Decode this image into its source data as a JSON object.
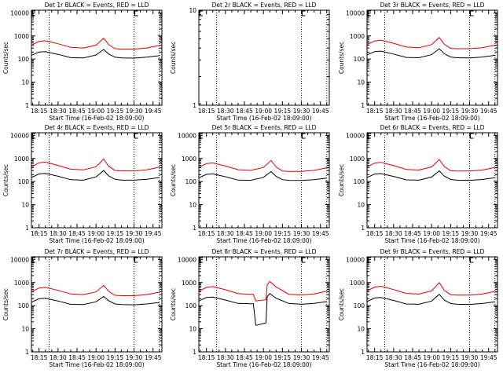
{
  "colors": {
    "events": "#000000",
    "lld": "#e00000",
    "axes": "#000000",
    "background": "#ffffff"
  },
  "shared_axes": {
    "xlabel": "Start Time (16-Feb-02 18:09:00)",
    "ylabel": "Counts/sec",
    "y_scale": "log",
    "ylim": [
      1,
      13000
    ],
    "xlim_times": [
      "18:09:00",
      "19:52:00"
    ],
    "x_ticks": [
      "18:15",
      "18:30",
      "18:45",
      "19:00",
      "19:15",
      "19:30",
      "19:45"
    ],
    "y_ticks_full": [
      "10000",
      "1000",
      "100",
      "10",
      "1"
    ],
    "dotted_line_times": [
      "18:23",
      "19:30",
      "19:50"
    ]
  },
  "chart_data": [
    {
      "type": "line",
      "title": "Det 1r BLACK = Events, RED = LLD",
      "x": [
        "18:09",
        "18:15",
        "18:20",
        "18:30",
        "18:40",
        "18:50",
        "19:00",
        "19:06",
        "19:10",
        "19:15",
        "19:20",
        "19:30",
        "19:40",
        "19:50"
      ],
      "series": [
        {
          "name": "Events",
          "color": "#000000",
          "values": [
            145,
            200,
            210,
            160,
            115,
            112,
            150,
            260,
            165,
            120,
            112,
            110,
            120,
            140
          ]
        },
        {
          "name": "LLD",
          "color": "#e00000",
          "values": [
            400,
            580,
            620,
            460,
            320,
            300,
            400,
            800,
            420,
            280,
            270,
            270,
            300,
            390
          ]
        }
      ],
      "ylim": [
        1,
        13000
      ],
      "y_scale": "log"
    },
    {
      "type": "line",
      "title": "Det 2r BLACK = Events, RED = LLD",
      "x": [],
      "series": [],
      "ylim": [
        1,
        10
      ],
      "y_scale": "log",
      "y_ticks": [
        "10",
        "1"
      ]
    },
    {
      "type": "line",
      "title": "Det 3r BLACK = Events, RED = LLD",
      "x": [
        "18:09",
        "18:15",
        "18:20",
        "18:30",
        "18:40",
        "18:50",
        "19:00",
        "19:06",
        "19:10",
        "19:15",
        "19:20",
        "19:30",
        "19:40",
        "19:50"
      ],
      "series": [
        {
          "name": "Events",
          "color": "#000000",
          "values": [
            150,
            210,
            220,
            165,
            118,
            114,
            155,
            280,
            170,
            122,
            114,
            112,
            122,
            145
          ]
        },
        {
          "name": "LLD",
          "color": "#e00000",
          "values": [
            420,
            610,
            650,
            480,
            330,
            310,
            420,
            850,
            440,
            290,
            280,
            280,
            310,
            400
          ]
        }
      ],
      "ylim": [
        1,
        13000
      ],
      "y_scale": "log"
    },
    {
      "type": "line",
      "title": "Det 4r BLACK = Events, RED = LLD",
      "x": [
        "18:09",
        "18:15",
        "18:20",
        "18:30",
        "18:40",
        "18:50",
        "19:00",
        "19:06",
        "19:10",
        "19:15",
        "19:20",
        "19:30",
        "19:40",
        "19:50"
      ],
      "series": [
        {
          "name": "Events",
          "color": "#000000",
          "values": [
            150,
            215,
            225,
            170,
            120,
            115,
            160,
            300,
            175,
            125,
            115,
            115,
            125,
            150
          ]
        },
        {
          "name": "LLD",
          "color": "#e00000",
          "values": [
            430,
            650,
            700,
            500,
            340,
            320,
            440,
            950,
            460,
            300,
            290,
            290,
            320,
            420
          ]
        }
      ],
      "ylim": [
        1,
        13000
      ],
      "y_scale": "log"
    },
    {
      "type": "line",
      "title": "Det 5r BLACK = Events, RED = LLD",
      "x": [
        "18:09",
        "18:15",
        "18:20",
        "18:30",
        "18:40",
        "18:50",
        "19:00",
        "19:06",
        "19:10",
        "19:15",
        "19:20",
        "19:30",
        "19:40",
        "19:50"
      ],
      "series": [
        {
          "name": "Events",
          "color": "#000000",
          "values": [
            145,
            205,
            215,
            162,
            116,
            113,
            152,
            270,
            168,
            121,
            113,
            111,
            121,
            142
          ]
        },
        {
          "name": "LLD",
          "color": "#e00000",
          "values": [
            410,
            600,
            640,
            470,
            325,
            305,
            410,
            820,
            430,
            285,
            275,
            275,
            305,
            395
          ]
        }
      ],
      "ylim": [
        1,
        13000
      ],
      "y_scale": "log"
    },
    {
      "type": "line",
      "title": "Det 6r BLACK = Events, RED = LLD",
      "x": [
        "18:09",
        "18:15",
        "18:20",
        "18:30",
        "18:40",
        "18:50",
        "19:00",
        "19:06",
        "19:10",
        "19:15",
        "19:20",
        "19:30",
        "19:40",
        "19:50"
      ],
      "series": [
        {
          "name": "Events",
          "color": "#000000",
          "values": [
            150,
            212,
            222,
            167,
            119,
            115,
            157,
            290,
            172,
            123,
            115,
            113,
            123,
            147
          ]
        },
        {
          "name": "LLD",
          "color": "#e00000",
          "values": [
            425,
            630,
            680,
            490,
            335,
            315,
            430,
            900,
            450,
            295,
            285,
            285,
            315,
            410
          ]
        }
      ],
      "ylim": [
        1,
        13000
      ],
      "y_scale": "log"
    },
    {
      "type": "line",
      "title": "Det 7r BLACK = Events, RED = LLD",
      "x": [
        "18:09",
        "18:15",
        "18:20",
        "18:30",
        "18:40",
        "18:50",
        "19:00",
        "19:06",
        "19:10",
        "19:15",
        "19:20",
        "19:30",
        "19:40",
        "19:50"
      ],
      "series": [
        {
          "name": "Events",
          "color": "#000000",
          "values": [
            140,
            200,
            210,
            160,
            114,
            111,
            148,
            250,
            163,
            119,
            111,
            109,
            119,
            138
          ]
        },
        {
          "name": "LLD",
          "color": "#e00000",
          "values": [
            400,
            580,
            620,
            460,
            320,
            300,
            395,
            760,
            415,
            280,
            270,
            270,
            300,
            385
          ]
        }
      ],
      "ylim": [
        1,
        13000
      ],
      "y_scale": "log"
    },
    {
      "type": "line",
      "title": "Det 8r BLACK = Events, RED = LLD",
      "x": [
        "18:09",
        "18:15",
        "18:20",
        "18:30",
        "18:40",
        "18:50",
        "18:52",
        "18:54",
        "18:58",
        "19:02",
        "19:03",
        "19:05",
        "19:10",
        "19:20",
        "19:30",
        "19:40",
        "19:50"
      ],
      "series": [
        {
          "name": "Events",
          "color": "#000000",
          "values": [
            160,
            225,
            235,
            175,
            125,
            120,
            120,
            14,
            16,
            18,
            250,
            330,
            210,
            125,
            115,
            125,
            150
          ]
        },
        {
          "name": "LLD",
          "color": "#e00000",
          "values": [
            420,
            620,
            670,
            490,
            330,
            310,
            310,
            160,
            170,
            180,
            800,
            1100,
            650,
            310,
            290,
            320,
            420
          ]
        }
      ],
      "ylim": [
        1,
        13000
      ],
      "y_scale": "log"
    },
    {
      "type": "line",
      "title": "Det 9r BLACK = Events, RED = LLD",
      "x": [
        "18:09",
        "18:15",
        "18:20",
        "18:30",
        "18:40",
        "18:50",
        "19:00",
        "19:06",
        "19:10",
        "19:15",
        "19:20",
        "19:30",
        "19:40",
        "19:50"
      ],
      "series": [
        {
          "name": "Events",
          "color": "#000000",
          "values": [
            150,
            215,
            225,
            168,
            119,
            115,
            158,
            310,
            174,
            124,
            115,
            113,
            124,
            148
          ]
        },
        {
          "name": "LLD",
          "color": "#e00000",
          "values": [
            430,
            640,
            690,
            495,
            338,
            318,
            435,
            1000,
            455,
            298,
            288,
            288,
            318,
            415
          ]
        }
      ],
      "ylim": [
        1,
        13000
      ],
      "y_scale": "log"
    }
  ]
}
